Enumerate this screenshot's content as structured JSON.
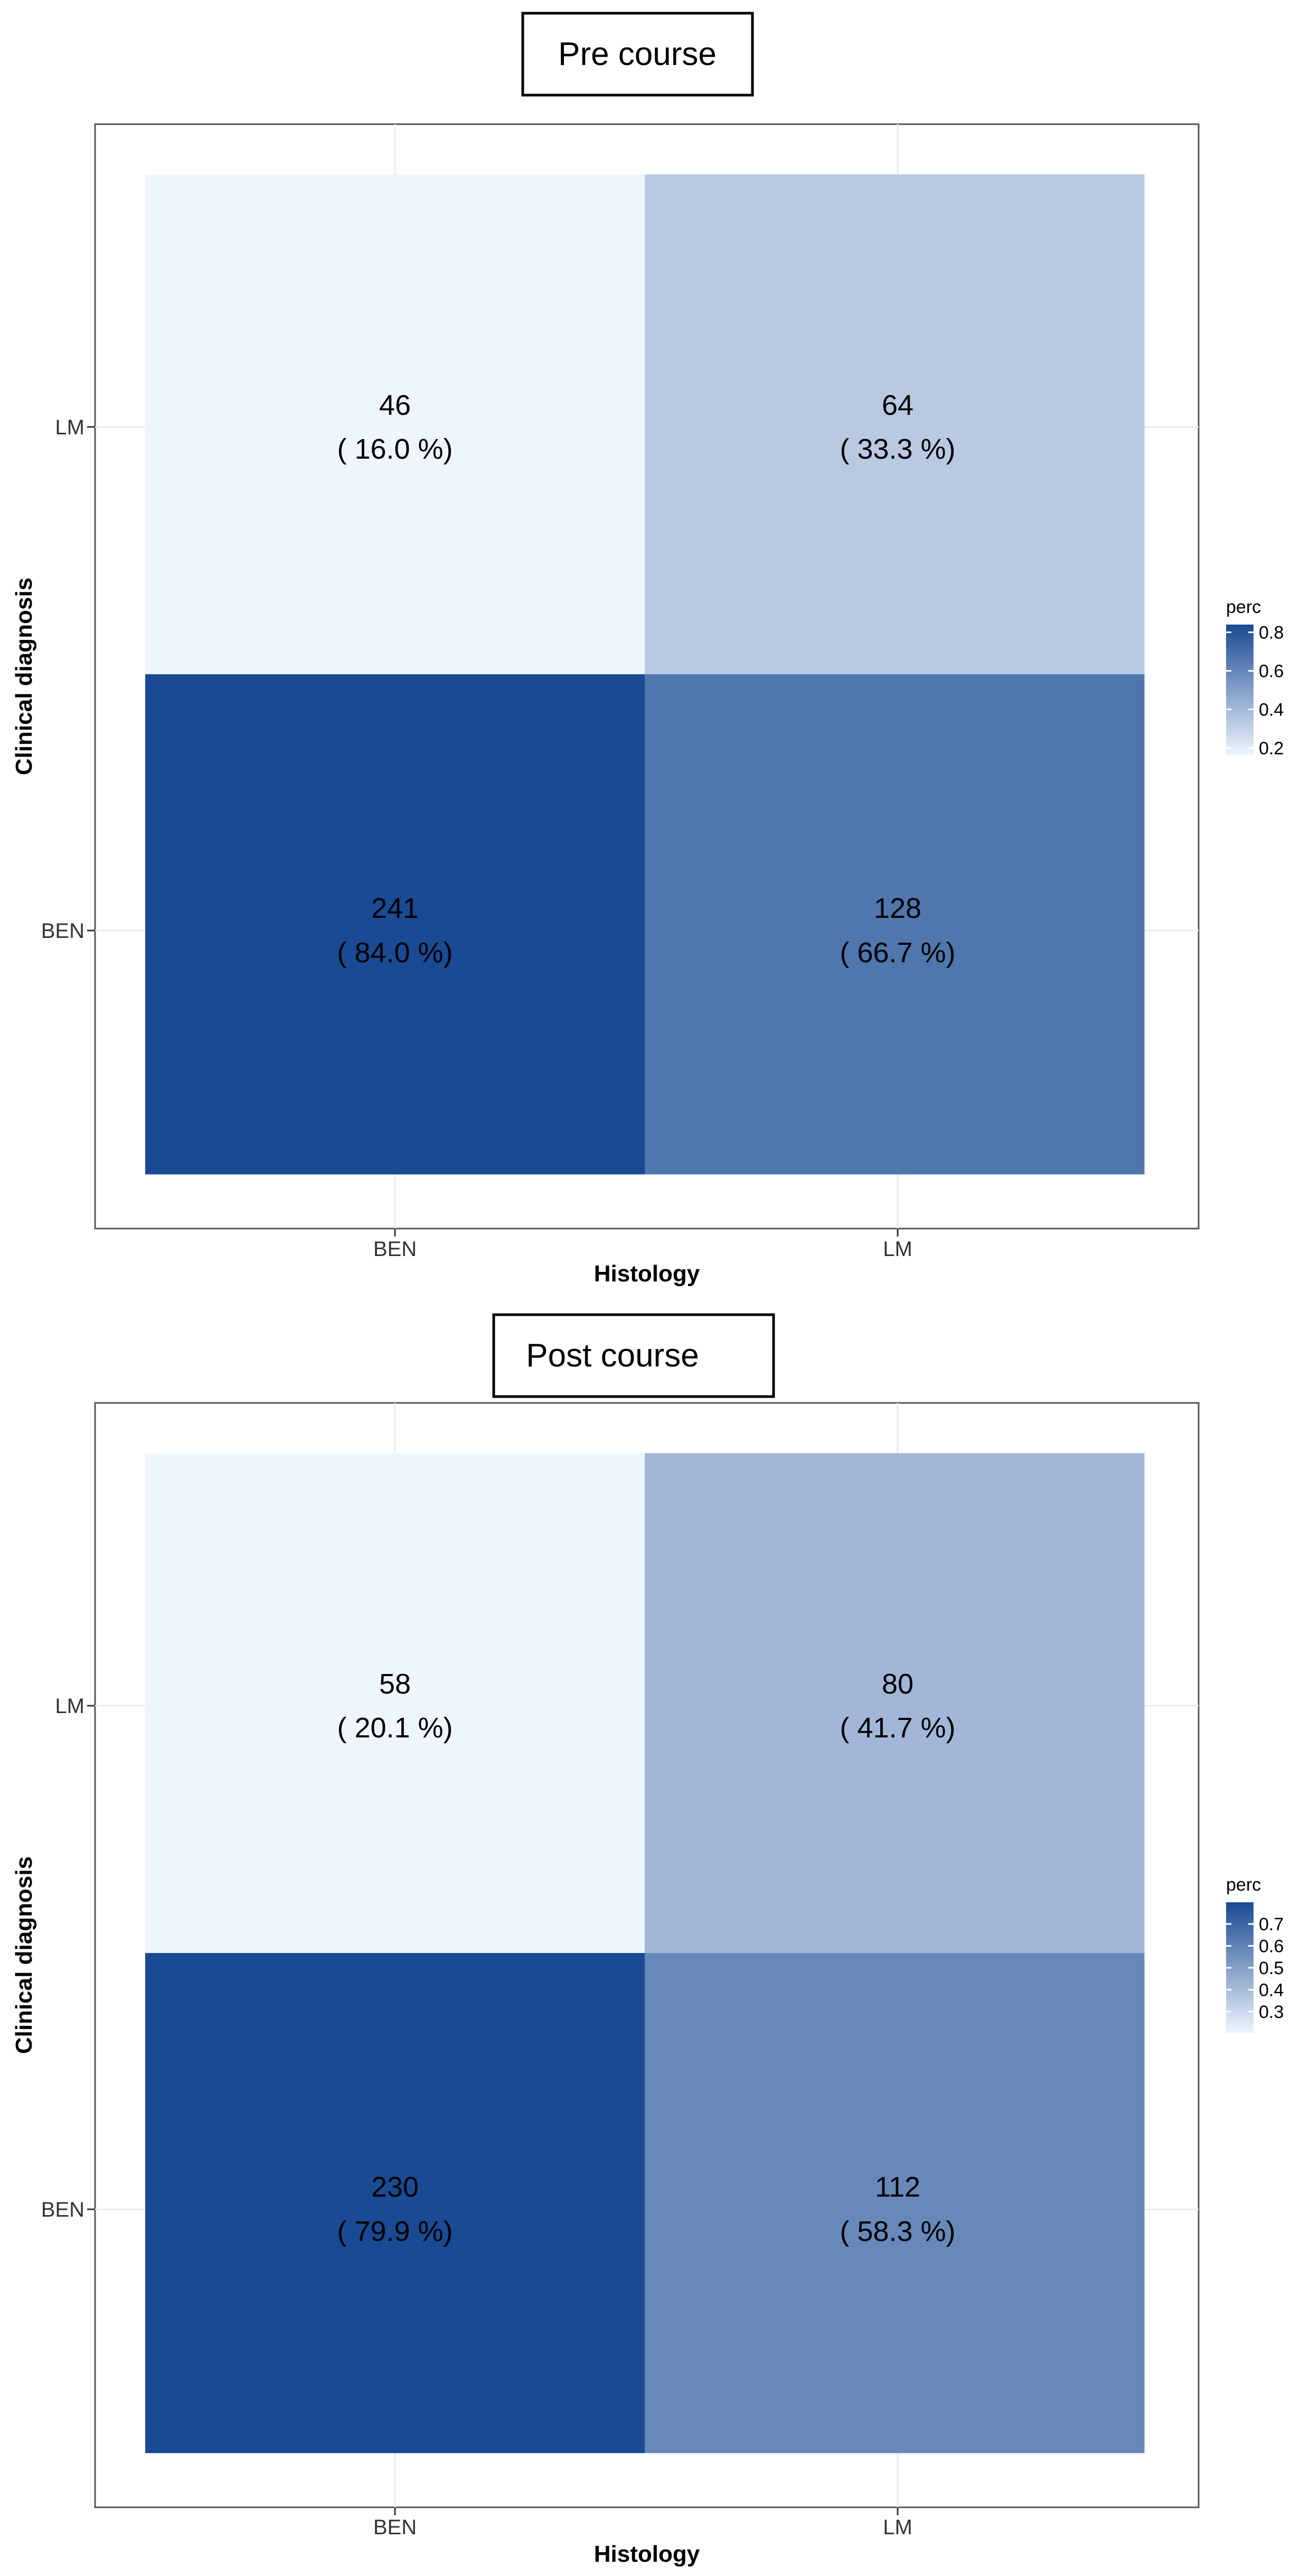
{
  "chart_data": [
    {
      "type": "heatmap",
      "title": "Pre course",
      "xlabel": "Histology",
      "ylabel": "Clinical diagnosis",
      "x_categories": [
        "BEN",
        "LM"
      ],
      "y_categories": [
        "BEN",
        "LM"
      ],
      "cells": [
        {
          "x": "BEN",
          "y": "LM",
          "count": "46",
          "label": "( 16.0 %)",
          "perc": 0.16
        },
        {
          "x": "LM",
          "y": "LM",
          "count": "64",
          "label": "( 33.3 %)",
          "perc": 0.333
        },
        {
          "x": "BEN",
          "y": "BEN",
          "count": "241",
          "label": "( 84.0 %)",
          "perc": 0.84
        },
        {
          "x": "LM",
          "y": "BEN",
          "count": "128",
          "label": "( 66.7 %)",
          "perc": 0.667
        }
      ],
      "legend": {
        "title": "perc",
        "ticks": [
          "0.8",
          "0.6",
          "0.4",
          "0.2"
        ],
        "tick_values": [
          0.8,
          0.6,
          0.4,
          0.2
        ],
        "range": [
          0.16,
          0.84
        ],
        "colors": [
          "#eff5fd",
          "#1a4a93"
        ]
      },
      "grid": true
    },
    {
      "type": "heatmap",
      "title": "Post course",
      "xlabel": "Histology",
      "ylabel": "Clinical diagnosis",
      "x_categories": [
        "BEN",
        "LM"
      ],
      "y_categories": [
        "BEN",
        "LM"
      ],
      "cells": [
        {
          "x": "BEN",
          "y": "LM",
          "count": "58",
          "label": "( 20.1 %)",
          "perc": 0.201
        },
        {
          "x": "LM",
          "y": "LM",
          "count": "80",
          "label": "( 41.7 %)",
          "perc": 0.417
        },
        {
          "x": "BEN",
          "y": "BEN",
          "count": "230",
          "label": "( 79.9 %)",
          "perc": 0.799
        },
        {
          "x": "LM",
          "y": "BEN",
          "count": "112",
          "label": "( 58.3 %)",
          "perc": 0.583
        }
      ],
      "legend": {
        "title": "perc",
        "ticks": [
          "0.7",
          "0.6",
          "0.5",
          "0.4",
          "0.3"
        ],
        "tick_values": [
          0.7,
          0.6,
          0.5,
          0.4,
          0.3
        ],
        "range": [
          0.201,
          0.799
        ],
        "colors": [
          "#eff5fd",
          "#1a4a93"
        ]
      },
      "grid": true
    }
  ]
}
